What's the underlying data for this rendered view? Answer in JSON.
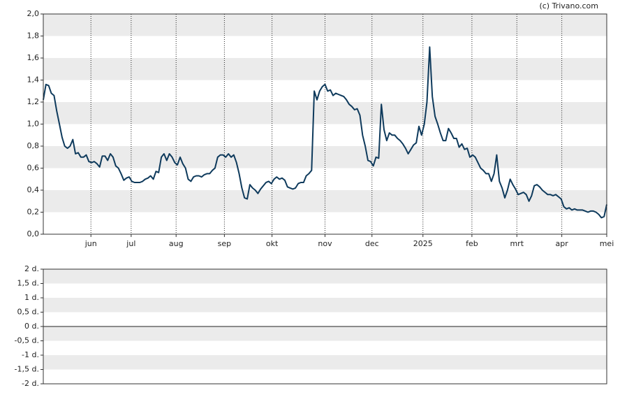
{
  "credit": "(c) Trivano.com",
  "chart_data": [
    {
      "type": "line",
      "series": [
        {
          "color": "#0e3a5c",
          "values": [
            1.22,
            1.36,
            1.35,
            1.28,
            1.26,
            1.12,
            1.0,
            0.88,
            0.8,
            0.78,
            0.8,
            0.86,
            0.73,
            0.74,
            0.7,
            0.7,
            0.72,
            0.66,
            0.65,
            0.66,
            0.64,
            0.61,
            0.71,
            0.71,
            0.67,
            0.73,
            0.7,
            0.62,
            0.6,
            0.55,
            0.49,
            0.51,
            0.52,
            0.48,
            0.47,
            0.47,
            0.47,
            0.48,
            0.5,
            0.51,
            0.53,
            0.5,
            0.57,
            0.56,
            0.7,
            0.73,
            0.67,
            0.73,
            0.7,
            0.65,
            0.63,
            0.7,
            0.64,
            0.6,
            0.5,
            0.48,
            0.52,
            0.53,
            0.53,
            0.52,
            0.54,
            0.55,
            0.55,
            0.58,
            0.6,
            0.7,
            0.72,
            0.72,
            0.7,
            0.73,
            0.7,
            0.72,
            0.65,
            0.55,
            0.42,
            0.33,
            0.32,
            0.45,
            0.42,
            0.4,
            0.37,
            0.41,
            0.44,
            0.47,
            0.48,
            0.46,
            0.5,
            0.52,
            0.5,
            0.51,
            0.49,
            0.43,
            0.42,
            0.41,
            0.42,
            0.46,
            0.47,
            0.47,
            0.53,
            0.55,
            0.58,
            1.3,
            1.22,
            1.3,
            1.34,
            1.36,
            1.3,
            1.31,
            1.26,
            1.28,
            1.27,
            1.26,
            1.25,
            1.22,
            1.18,
            1.16,
            1.13,
            1.14,
            1.08,
            0.9,
            0.8,
            0.67,
            0.66,
            0.62,
            0.7,
            0.69,
            1.18,
            0.95,
            0.85,
            0.92,
            0.9,
            0.9,
            0.87,
            0.85,
            0.82,
            0.78,
            0.73,
            0.77,
            0.81,
            0.83,
            0.98,
            0.9,
            1.0,
            1.2,
            1.7,
            1.25,
            1.07,
            1.0,
            0.92,
            0.85,
            0.85,
            0.96,
            0.92,
            0.87,
            0.87,
            0.79,
            0.82,
            0.77,
            0.78,
            0.7,
            0.72,
            0.7,
            0.65,
            0.6,
            0.58,
            0.55,
            0.55,
            0.48,
            0.55,
            0.72,
            0.48,
            0.42,
            0.33,
            0.4,
            0.5,
            0.45,
            0.41,
            0.36,
            0.37,
            0.38,
            0.36,
            0.3,
            0.35,
            0.44,
            0.45,
            0.43,
            0.4,
            0.38,
            0.36,
            0.36,
            0.35,
            0.36,
            0.34,
            0.32,
            0.25,
            0.23,
            0.24,
            0.22,
            0.23,
            0.22,
            0.22,
            0.22,
            0.21,
            0.2,
            0.21,
            0.21,
            0.2,
            0.18,
            0.15,
            0.16,
            0.27
          ]
        }
      ],
      "xlim": [
        0,
        210
      ],
      "xticks": [
        {
          "value": 17.75,
          "label": "jun"
        },
        {
          "value": 32.75,
          "label": "jul"
        },
        {
          "value": 49.5,
          "label": "aug"
        },
        {
          "value": 67.5,
          "label": "sep"
        },
        {
          "value": 85.25,
          "label": "okt"
        },
        {
          "value": 105,
          "label": "nov"
        },
        {
          "value": 122.5,
          "label": "dec"
        },
        {
          "value": 141.5,
          "label": "2025"
        },
        {
          "value": 159.75,
          "label": "feb"
        },
        {
          "value": 176.5,
          "label": "mrt"
        },
        {
          "value": 193.25,
          "label": "apr"
        },
        {
          "value": 210,
          "label": "mei"
        }
      ],
      "ylim": [
        0,
        2
      ],
      "yticks": [
        {
          "value": 0,
          "label": "0,0"
        },
        {
          "value": 0.2,
          "label": "0,2"
        },
        {
          "value": 0.4,
          "label": "0,4"
        },
        {
          "value": 0.6,
          "label": "0,6"
        },
        {
          "value": 0.8,
          "label": "0,8"
        },
        {
          "value": 1.0,
          "label": "1,0"
        },
        {
          "value": 1.2,
          "label": "1,2"
        },
        {
          "value": 1.4,
          "label": "1,4"
        },
        {
          "value": 1.6,
          "label": "1,6"
        },
        {
          "value": 1.8,
          "label": "1,8"
        },
        {
          "value": 2.0,
          "label": "2,0"
        }
      ],
      "grid": true
    },
    {
      "type": "bar",
      "ylim": [
        -2,
        2
      ],
      "yticks": [
        {
          "value": -2,
          "label": "-2 d."
        },
        {
          "value": -1.5,
          "label": "-1,5 d."
        },
        {
          "value": -1,
          "label": "-1 d."
        },
        {
          "value": -0.5,
          "label": "-0,5 d."
        },
        {
          "value": 0,
          "label": "0 d."
        },
        {
          "value": 0.5,
          "label": "0,5 d."
        },
        {
          "value": 1,
          "label": "1 d."
        },
        {
          "value": 1.5,
          "label": "1,5 d."
        },
        {
          "value": 2,
          "label": "2 d."
        }
      ]
    }
  ]
}
